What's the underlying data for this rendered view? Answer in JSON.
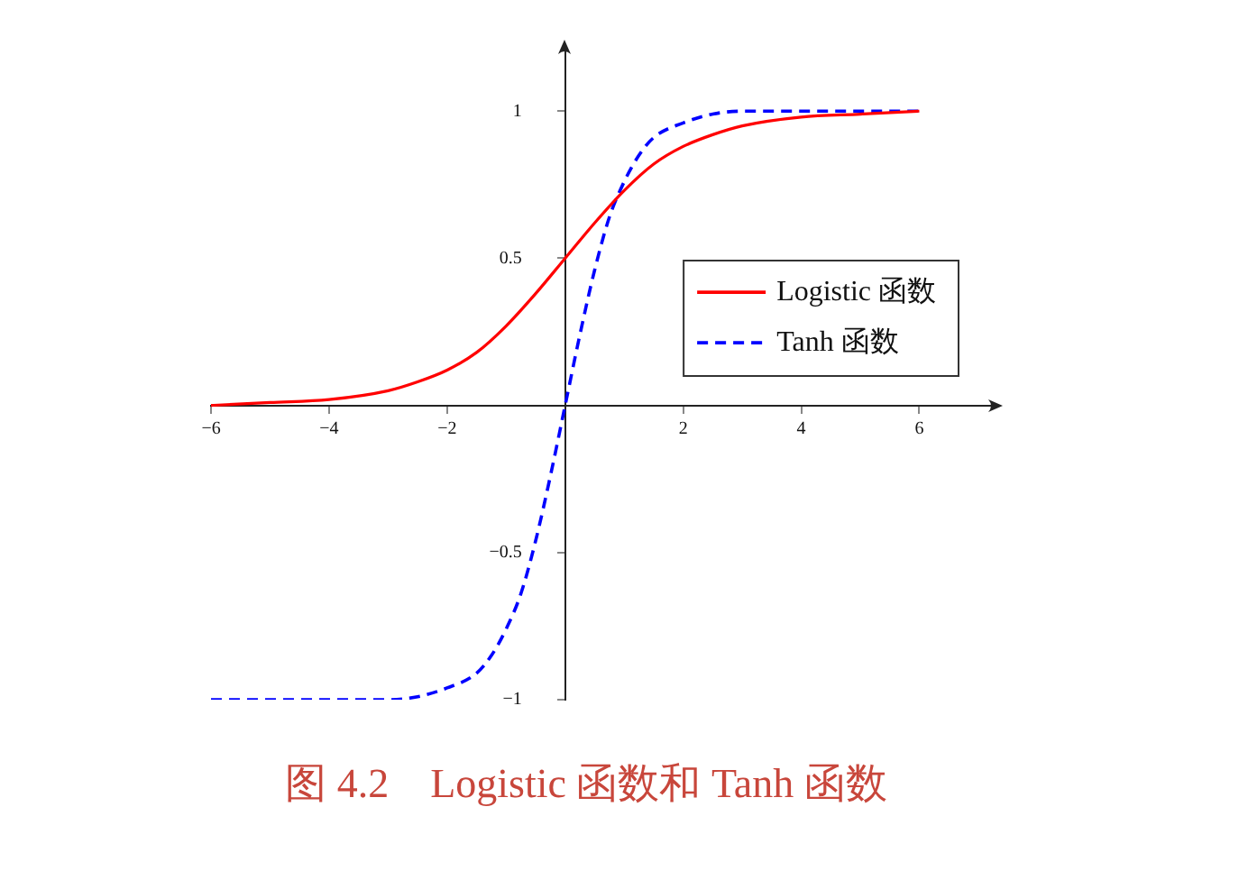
{
  "chart_data": {
    "type": "line",
    "xlim": [
      -6,
      7.2
    ],
    "ylim": [
      -1,
      1.2
    ],
    "xticks": [
      {
        "value": -6,
        "label": "−6"
      },
      {
        "value": -4,
        "label": "−4"
      },
      {
        "value": -2,
        "label": "−2"
      },
      2,
      4,
      6
    ],
    "yticks": [
      {
        "value": -1,
        "label": "−1"
      },
      {
        "value": -0.5,
        "label": "−0.5"
      },
      0.5,
      1
    ],
    "grid": false,
    "legend": "right",
    "marker": "none",
    "series": [
      {
        "name": "Logistic 函数",
        "color": "#ff0000",
        "line_style": "solid",
        "x": [
          -6,
          -5,
          -4,
          -3,
          -2.5,
          -2,
          -1.5,
          -1,
          -0.5,
          0,
          0.5,
          1,
          1.5,
          2,
          2.5,
          3,
          4,
          5,
          6
        ],
        "values": [
          0,
          0.01,
          0.02,
          0.05,
          0.08,
          0.12,
          0.18,
          0.27,
          0.38,
          0.5,
          0.62,
          0.73,
          0.82,
          0.88,
          0.92,
          0.95,
          0.98,
          0.99,
          1
        ]
      },
      {
        "name": "Tanh 函数",
        "color": "#0000ff",
        "line_style": "dashed",
        "x": [
          -6,
          -4,
          -3,
          -2.5,
          -2,
          -1.5,
          -1.25,
          -1,
          -0.75,
          -0.5,
          -0.25,
          0,
          0.25,
          0.5,
          0.75,
          1,
          1.25,
          1.5,
          2,
          2.5,
          3,
          4,
          6
        ],
        "values": [
          -1,
          -1,
          -1,
          -0.99,
          -0.96,
          -0.91,
          -0.85,
          -0.76,
          -0.64,
          -0.46,
          -0.24,
          0,
          0.24,
          0.46,
          0.64,
          0.76,
          0.85,
          0.91,
          0.96,
          0.99,
          1,
          1,
          1
        ]
      }
    ],
    "annotations": [
      "图 4.2　Logistic 函数和 Tanh 函数"
    ]
  }
}
